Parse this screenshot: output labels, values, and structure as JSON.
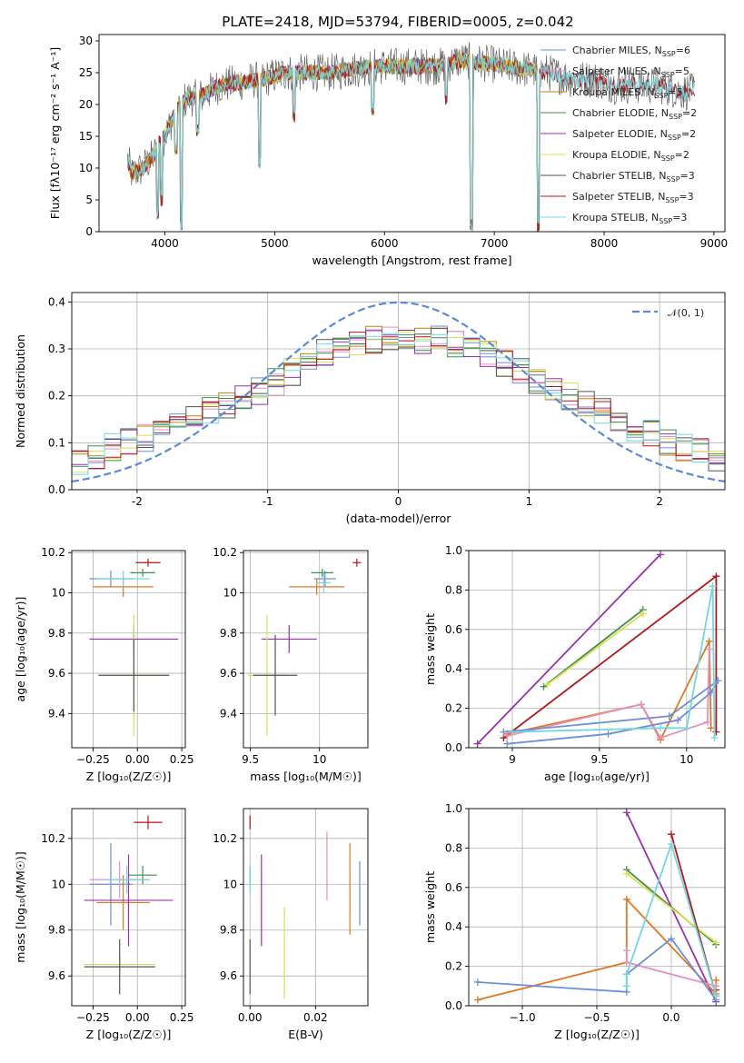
{
  "figure": {
    "title": "PLATE=2418, MJD=53794, FIBERID=0005, z=0.042",
    "colors": {
      "chabrier_miles": "#6f8fd8",
      "salpeter_miles": "#e88fc0",
      "kroupa_miles": "#b8860b",
      "chabrier_elodie": "#3f8f4f",
      "salpeter_elodie": "#9a30b0",
      "kroupa_elodie": "#d8e050",
      "chabrier_stelib": "#555555",
      "salpeter_stelib": "#b01818",
      "kroupa_stelib": "#70d8e0",
      "orange": "#e07820",
      "gaussian": "#5b8bd8"
    }
  },
  "chart_data": [
    {
      "id": "spectrum",
      "type": "line",
      "xlabel": "wavelength [Angstrom, rest frame]",
      "ylabel": "Flux [fλ10⁻¹⁷ erg cm⁻² s⁻¹ A⁻¹]",
      "xlim": [
        3400,
        9100
      ],
      "ylim": [
        0,
        31
      ],
      "xticks": [
        4000,
        5000,
        6000,
        7000,
        8000,
        9000
      ],
      "yticks": [
        0,
        5,
        10,
        15,
        20,
        25,
        30
      ],
      "grid": false,
      "legend_position": "top-right",
      "legend": [
        {
          "label": "Chabrier MILES, N",
          "sub": "SSP",
          "tail": "=6",
          "color": "#6f8fd8"
        },
        {
          "label": "Salpeter MILES, N",
          "sub": "SSP",
          "tail": "=5",
          "color": "#e88fc0"
        },
        {
          "label": "Kroupa MILES, N",
          "sub": "SSP",
          "tail": "=5",
          "color": "#b8860b"
        },
        {
          "label": "Chabrier ELODIE, N",
          "sub": "SSP",
          "tail": "=2",
          "color": "#3f8f4f"
        },
        {
          "label": "Salpeter ELODIE, N",
          "sub": "SSP",
          "tail": "=2",
          "color": "#9a30b0"
        },
        {
          "label": "Kroupa ELODIE, N",
          "sub": "SSP",
          "tail": "=2",
          "color": "#d8e050"
        },
        {
          "label": "Chabrier STELIB, N",
          "sub": "SSP",
          "tail": "=3",
          "color": "#555555"
        },
        {
          "label": "Salpeter STELIB, N",
          "sub": "SSP",
          "tail": "=3",
          "color": "#b01818"
        },
        {
          "label": "Kroupa STELIB, N",
          "sub": "SSP",
          "tail": "=3",
          "color": "#70d8e0"
        }
      ],
      "continuum": [
        [
          3650,
          12
        ],
        [
          3700,
          9
        ],
        [
          3800,
          10
        ],
        [
          3900,
          12
        ],
        [
          3950,
          14
        ],
        [
          4000,
          15
        ],
        [
          4100,
          19
        ],
        [
          4200,
          21
        ],
        [
          4300,
          21
        ],
        [
          4400,
          22
        ],
        [
          4500,
          23
        ],
        [
          4700,
          23.5
        ],
        [
          4900,
          24
        ],
        [
          5100,
          25
        ],
        [
          5300,
          25
        ],
        [
          5500,
          25
        ],
        [
          5700,
          25.5
        ],
        [
          5900,
          26
        ],
        [
          6100,
          26
        ],
        [
          6300,
          26
        ],
        [
          6500,
          26
        ],
        [
          6700,
          27
        ],
        [
          6900,
          26.5
        ],
        [
          7100,
          26
        ],
        [
          7300,
          25.5
        ],
        [
          7500,
          25
        ],
        [
          7700,
          24
        ],
        [
          7900,
          24
        ],
        [
          8100,
          23
        ],
        [
          8300,
          23
        ],
        [
          8500,
          23
        ],
        [
          8700,
          22
        ],
        [
          8830,
          22
        ]
      ],
      "absorption": [
        [
          3934,
          2
        ],
        [
          3969,
          4
        ],
        [
          4102,
          12
        ],
        [
          4150,
          0
        ],
        [
          4300,
          15
        ],
        [
          4861,
          10
        ],
        [
          5175,
          17
        ],
        [
          5890,
          18
        ],
        [
          6563,
          20
        ],
        [
          6790,
          0
        ],
        [
          7400,
          0
        ]
      ]
    },
    {
      "id": "residuals",
      "type": "histogram",
      "xlabel": "(data-model)/error",
      "ylabel": "Normed distribution",
      "xlim": [
        -2.5,
        2.5
      ],
      "ylim": [
        0,
        0.42
      ],
      "xticks": [
        -2,
        -1,
        0,
        1,
        2
      ],
      "yticks": [
        0.0,
        0.1,
        0.2,
        0.3,
        0.4
      ],
      "grid": true,
      "legend_position": "top-right",
      "gaussian_label": "𝒩(0, 1)",
      "bins": {
        "start": -2.5,
        "width": 0.125,
        "count": 40
      },
      "envelope": [
        0.06,
        0.07,
        0.09,
        0.1,
        0.11,
        0.13,
        0.14,
        0.16,
        0.17,
        0.18,
        0.2,
        0.21,
        0.23,
        0.25,
        0.27,
        0.29,
        0.3,
        0.31,
        0.32,
        0.32,
        0.33,
        0.32,
        0.32,
        0.31,
        0.3,
        0.29,
        0.27,
        0.25,
        0.23,
        0.21,
        0.2,
        0.18,
        0.17,
        0.15,
        0.13,
        0.12,
        0.1,
        0.09,
        0.08,
        0.07
      ]
    },
    {
      "id": "age_vs_Z",
      "type": "scatter",
      "xlabel": "Z [log₁₀(Z/Z☉)]",
      "ylabel": "age  [log₁₀(age/yr)]",
      "xlim": [
        -0.37,
        0.27
      ],
      "ylim": [
        9.23,
        10.21
      ],
      "xticks": [
        -0.25,
        0.0,
        0.25
      ],
      "xticklabels": [
        "−0.25",
        "0.00",
        "0.25"
      ],
      "yticks": [
        9.4,
        9.6,
        9.8,
        10.0,
        10.2
      ],
      "grid": true,
      "points": [
        {
          "x": -0.15,
          "y": 10.07,
          "xerr": 0.12,
          "yerr": 0.04,
          "color": "#6f8fd8"
        },
        {
          "x": -0.08,
          "y": 10.03,
          "xerr": 0.17,
          "yerr": 0.05,
          "color": "#e07820"
        },
        {
          "x": 0.06,
          "y": 10.15,
          "xerr": 0.07,
          "yerr": 0.02,
          "color": "#b01818"
        },
        {
          "x": 0.03,
          "y": 10.1,
          "xerr": 0.07,
          "yerr": 0.02,
          "color": "#3f8f4f"
        },
        {
          "x": -0.02,
          "y": 9.77,
          "xerr": 0.25,
          "yerr": 0.07,
          "color": "#9a30b0"
        },
        {
          "x": -0.02,
          "y": 9.59,
          "xerr": 0.18,
          "yerr": 0.3,
          "color": "#d8e050"
        },
        {
          "x": -0.02,
          "y": 9.59,
          "xerr": 0.2,
          "yerr": 0.18,
          "color": "#555555"
        },
        {
          "x": -0.08,
          "y": 10.07,
          "xerr": 0.15,
          "yerr": 0.04,
          "color": "#70d8e0"
        }
      ]
    },
    {
      "id": "age_vs_mass",
      "type": "scatter",
      "xlabel": "mass [log₁₀(M/M☉)]",
      "ylabel": "",
      "xlim": [
        9.45,
        10.35
      ],
      "ylim": [
        9.23,
        10.21
      ],
      "xticks": [
        9.5,
        10.0
      ],
      "yticks": [
        9.4,
        9.6,
        9.8,
        10.0,
        10.2
      ],
      "grid": true,
      "points": [
        {
          "x": 10.04,
          "y": 10.07,
          "xerr": 0.08,
          "yerr": 0.04,
          "color": "#6f8fd8"
        },
        {
          "x": 9.98,
          "y": 10.03,
          "xerr": 0.2,
          "yerr": 0.04,
          "color": "#e07820"
        },
        {
          "x": 10.27,
          "y": 10.15,
          "xerr": 0.03,
          "yerr": 0.02,
          "color": "#b01818"
        },
        {
          "x": 10.02,
          "y": 10.1,
          "xerr": 0.08,
          "yerr": 0.02,
          "color": "#3f8f4f"
        },
        {
          "x": 9.78,
          "y": 9.77,
          "xerr": 0.2,
          "yerr": 0.07,
          "color": "#9a30b0"
        },
        {
          "x": 9.62,
          "y": 9.59,
          "xerr": 0.14,
          "yerr": 0.3,
          "color": "#d8e050"
        },
        {
          "x": 9.68,
          "y": 9.59,
          "xerr": 0.16,
          "yerr": 0.2,
          "color": "#555555"
        },
        {
          "x": 10.03,
          "y": 10.05,
          "xerr": 0.05,
          "yerr": 0.05,
          "color": "#70d8e0"
        }
      ]
    },
    {
      "id": "massweight_vs_age",
      "type": "line",
      "xlabel": "age  [log₁₀(age/yr)]",
      "ylabel": "mass weight",
      "xlim": [
        8.75,
        10.22
      ],
      "ylim": [
        0,
        1
      ],
      "xticks": [
        9.0,
        9.5,
        10.0
      ],
      "yticks": [
        0.0,
        0.2,
        0.4,
        0.6,
        0.8,
        1.0
      ],
      "grid": true,
      "series": [
        {
          "color": "#9a30b0",
          "x": [
            8.8,
            9.85
          ],
          "y": [
            0.02,
            0.98
          ]
        },
        {
          "color": "#3f8f4f",
          "x": [
            9.18,
            9.75
          ],
          "y": [
            0.31,
            0.7
          ]
        },
        {
          "color": "#d8e050",
          "x": [
            9.2,
            9.75
          ],
          "y": [
            0.32,
            0.68
          ]
        },
        {
          "color": "#b01818",
          "x": [
            8.95,
            10.17,
            10.17
          ],
          "y": [
            0.05,
            0.87,
            0.08
          ]
        },
        {
          "color": "#e07820",
          "x": [
            8.97,
            9.74,
            9.85,
            10.13,
            10.14
          ],
          "y": [
            0.07,
            0.22,
            0.04,
            0.54,
            0.1
          ]
        },
        {
          "color": "#e88fc0",
          "x": [
            8.97,
            9.74,
            9.85,
            10.12,
            10.13
          ],
          "y": [
            0.06,
            0.22,
            0.05,
            0.13,
            0.5
          ]
        },
        {
          "color": "#6f8fd8",
          "x": [
            8.97,
            9.55,
            9.95,
            10.14,
            10.18,
            9.9,
            8.95
          ],
          "y": [
            0.02,
            0.07,
            0.14,
            0.28,
            0.34,
            0.16,
            0.08
          ]
        },
        {
          "color": "#70d8e0",
          "x": [
            9.0,
            9.85,
            10.0,
            10.15,
            10.16
          ],
          "y": [
            0.08,
            0.1,
            0.1,
            0.82,
            0.05
          ]
        }
      ]
    },
    {
      "id": "mass_vs_Z",
      "type": "scatter",
      "xlabel": "Z [log₁₀(Z/Z☉)]",
      "ylabel": "mass [log₁₀(M/M☉)]",
      "xlim": [
        -0.37,
        0.27
      ],
      "ylim": [
        9.47,
        10.33
      ],
      "xticks": [
        -0.25,
        0.0,
        0.25
      ],
      "xticklabels": [
        "−0.25",
        "0.00",
        "0.25"
      ],
      "yticks": [
        9.6,
        9.8,
        10.0,
        10.2
      ],
      "grid": true,
      "points": [
        {
          "x": -0.15,
          "y": 10.0,
          "xerr": 0.12,
          "yerr": 0.18,
          "color": "#6f8fd8"
        },
        {
          "x": -0.1,
          "y": 10.02,
          "xerr": 0.17,
          "yerr": 0.08,
          "color": "#e88fc0"
        },
        {
          "x": -0.08,
          "y": 9.92,
          "xerr": 0.15,
          "yerr": 0.12,
          "color": "#e07820"
        },
        {
          "x": 0.06,
          "y": 10.27,
          "xerr": 0.08,
          "yerr": 0.03,
          "color": "#b01818"
        },
        {
          "x": 0.03,
          "y": 10.04,
          "xerr": 0.08,
          "yerr": 0.04,
          "color": "#3f8f4f"
        },
        {
          "x": -0.05,
          "y": 9.93,
          "xerr": 0.25,
          "yerr": 0.2,
          "color": "#9a30b0"
        },
        {
          "x": -0.1,
          "y": 9.65,
          "xerr": 0.2,
          "yerr": 0.04,
          "color": "#d8e050"
        },
        {
          "x": -0.1,
          "y": 9.64,
          "xerr": 0.2,
          "yerr": 0.12,
          "color": "#555555"
        },
        {
          "x": -0.06,
          "y": 10.02,
          "xerr": 0.12,
          "yerr": 0.06,
          "color": "#70d8e0"
        }
      ]
    },
    {
      "id": "mass_vs_ebv",
      "type": "scatter",
      "xlabel": "E(B-V)",
      "ylabel": "",
      "xlim": [
        -0.002,
        0.036
      ],
      "ylim": [
        9.47,
        10.33
      ],
      "xticks": [
        0.0,
        0.02
      ],
      "xticklabels": [
        "0.00",
        "0.02"
      ],
      "yticks": [
        9.6,
        9.8,
        10.0,
        10.2
      ],
      "grid": true,
      "points": [
        {
          "x": 0.0,
          "y": 10.27,
          "xerr": 0,
          "yerr": 0.03,
          "color": "#b01818"
        },
        {
          "x": 0.0,
          "y": 10.04,
          "xerr": 0,
          "yerr": 0.04,
          "color": "#3f8f4f"
        },
        {
          "x": 0.0,
          "y": 9.64,
          "xerr": 0,
          "yerr": 0.12,
          "color": "#555555"
        },
        {
          "x": 0.0,
          "y": 10.02,
          "xerr": 0,
          "yerr": 0.06,
          "color": "#70d8e0"
        },
        {
          "x": 0.0035,
          "y": 9.93,
          "xerr": 0,
          "yerr": 0.2,
          "color": "#9a30b0"
        },
        {
          "x": 0.0105,
          "y": 9.7,
          "xerr": 0,
          "yerr": 0.2,
          "color": "#d8e050"
        },
        {
          "x": 0.0235,
          "y": 10.08,
          "xerr": 0,
          "yerr": 0.15,
          "color": "#e88fc0"
        },
        {
          "x": 0.0305,
          "y": 9.98,
          "xerr": 0,
          "yerr": 0.2,
          "color": "#e07820"
        },
        {
          "x": 0.0335,
          "y": 9.96,
          "xerr": 0,
          "yerr": 0.14,
          "color": "#6f8fd8"
        }
      ]
    },
    {
      "id": "massweight_vs_Z",
      "type": "line",
      "xlabel": "Z [log₁₀(Z/Z☉)]",
      "ylabel": "mass weight",
      "xlim": [
        -1.36,
        0.36
      ],
      "ylim": [
        0,
        1
      ],
      "xticks": [
        -1.0,
        -0.5,
        0.0
      ],
      "xticklabels": [
        "−1.0",
        "−0.5",
        "0.0"
      ],
      "yticks": [
        0.0,
        0.2,
        0.4,
        0.6,
        0.8,
        1.0
      ],
      "grid": true,
      "series": [
        {
          "color": "#9a30b0",
          "x": [
            -0.3,
            0.3
          ],
          "y": [
            0.98,
            0.02
          ]
        },
        {
          "color": "#3f8f4f",
          "x": [
            -0.3,
            0.3
          ],
          "y": [
            0.69,
            0.31
          ]
        },
        {
          "color": "#d8e050",
          "x": [
            -0.3,
            0.3
          ],
          "y": [
            0.67,
            0.32
          ]
        },
        {
          "color": "#b01818",
          "x": [
            0.0,
            0.3,
            0.3
          ],
          "y": [
            0.87,
            0.05,
            0.08
          ]
        },
        {
          "color": "#e07820",
          "x": [
            -1.3,
            -0.3,
            -0.3,
            0.3,
            0.3
          ],
          "y": [
            0.03,
            0.22,
            0.54,
            0.06,
            0.13
          ]
        },
        {
          "color": "#e88fc0",
          "x": [
            -0.3,
            -0.3,
            0.3
          ],
          "y": [
            0.28,
            0.22,
            0.1
          ]
        },
        {
          "color": "#6f8fd8",
          "x": [
            -1.3,
            -0.3,
            -0.3,
            0.0,
            0.3
          ],
          "y": [
            0.12,
            0.07,
            0.16,
            0.34,
            0.03
          ]
        },
        {
          "color": "#70d8e0",
          "x": [
            -0.3,
            -0.3,
            0.0,
            0.3
          ],
          "y": [
            0.1,
            0.16,
            0.82,
            0.05
          ]
        }
      ]
    }
  ]
}
